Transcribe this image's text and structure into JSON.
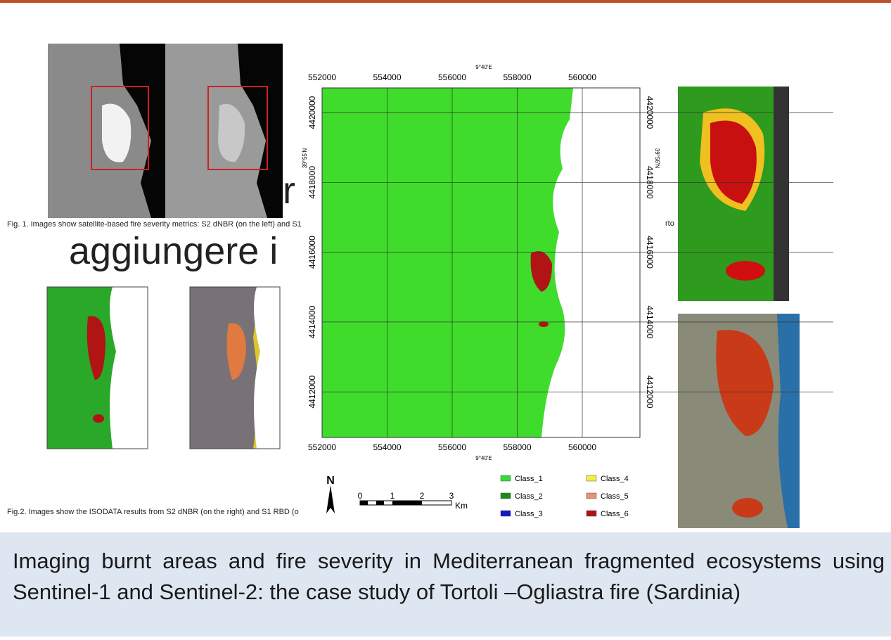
{
  "slide": {
    "fig1_caption": "Fig. 1. Images show satellite-based fire severity metrics: S2 dNBR (on the left) and S1",
    "fig2_caption": "Fig.2. Images show the ISODATA results from S2 dNBR (on the right) and S1 RBD (o",
    "placeholder_fragments": [
      "r",
      "aggiungere i",
      "rto"
    ],
    "title": "Imaging burnt areas and fire severity in Mediterranean fragmented ecosystems using Sentinel-1 and Sentinel-2: the case study of Tortoli –Ogliastra fire (Sardinia)"
  },
  "map": {
    "x_labels": [
      "552000",
      "554000",
      "556000",
      "558000",
      "560000"
    ],
    "y_labels": [
      "4420000",
      "4418000",
      "4416000",
      "4414000",
      "4412000"
    ],
    "top_label": "9°40'E",
    "bottom_label": "9°40'E",
    "left_label": "39°55'N",
    "right_label": "39°56'N",
    "north": "N",
    "scale_ticks": [
      "0",
      "1",
      "2",
      "3"
    ],
    "scale_unit": "Km",
    "legend": [
      {
        "name": "Class_1",
        "color": "#33dd33"
      },
      {
        "name": "Class_2",
        "color": "#1a8a1a"
      },
      {
        "name": "Class_3",
        "color": "#1414c8"
      },
      {
        "name": "Class_4",
        "color": "#f2f040"
      },
      {
        "name": "Class_5",
        "color": "#ec9070"
      },
      {
        "name": "Class_6",
        "color": "#b01414"
      }
    ]
  }
}
